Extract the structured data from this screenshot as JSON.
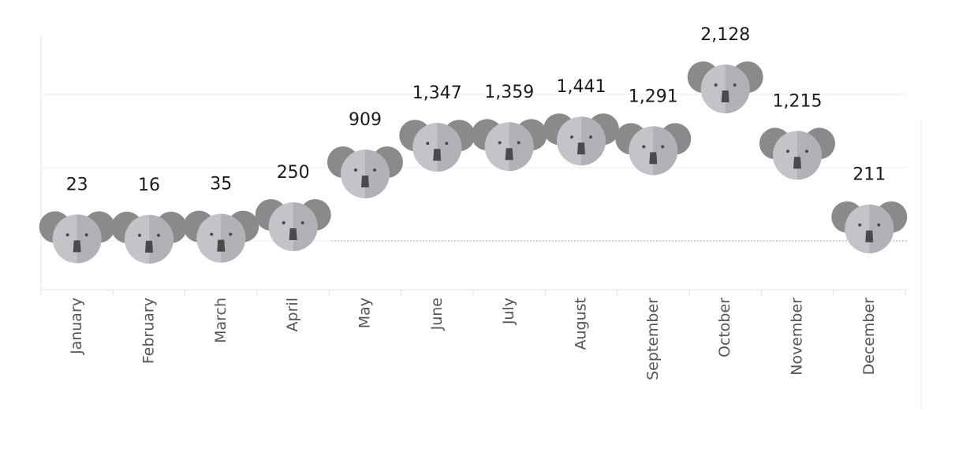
{
  "chart_data": {
    "type": "scatter",
    "title": "",
    "xlabel": "",
    "ylabel": "",
    "marker_icon": "koala-icon",
    "grid": "horizontal",
    "categories": [
      "January",
      "February",
      "March",
      "April",
      "May",
      "June",
      "July",
      "August",
      "September",
      "October",
      "November",
      "December"
    ],
    "values": [
      23,
      16,
      35,
      250,
      909,
      1347,
      1359,
      1441,
      1291,
      2128,
      1215,
      211
    ],
    "value_labels": [
      "23",
      "16",
      "35",
      "250",
      "909",
      "1,347",
      "1,359",
      "1,441",
      "1,291",
      "2,128",
      "1,215",
      "211"
    ],
    "colors": {
      "koala_ear": "#8a8a8c",
      "koala_face_light": "#c4c3c8",
      "koala_face_dark": "#b2b1b6",
      "koala_nose": "#4a4a4c",
      "gridline": "#e8e8e8",
      "reference_line": "#aaaaaa"
    }
  }
}
